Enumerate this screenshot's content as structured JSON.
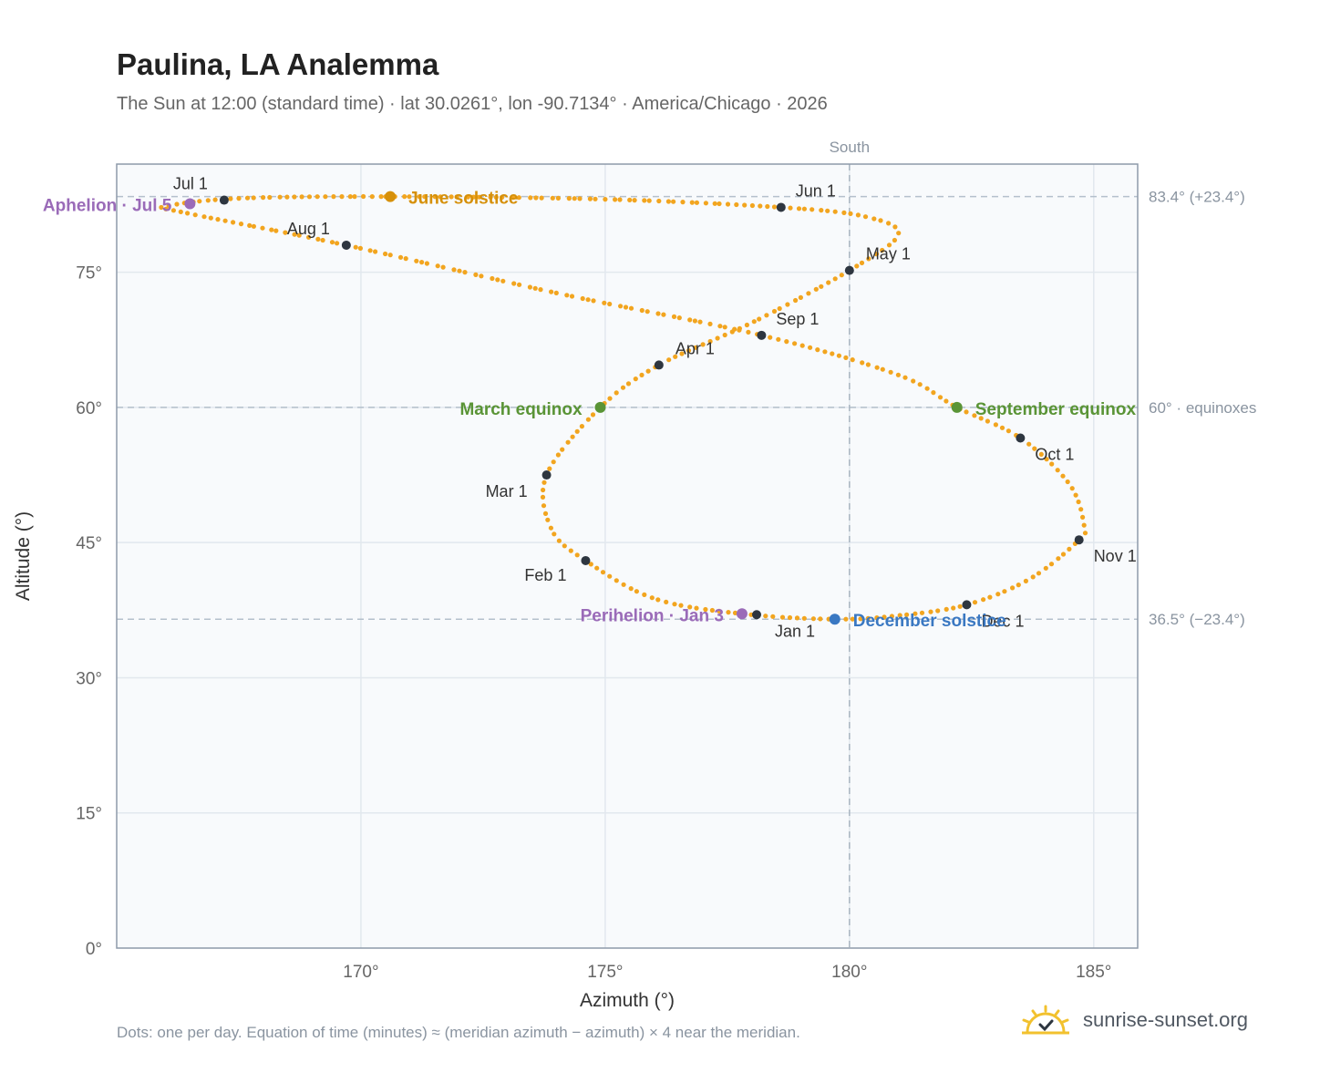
{
  "title": "Paulina, LA Analemma",
  "subtitle": "The Sun at 12:00 (standard time) · lat 30.0261°, lon -90.7134° · America/Chicago · 2026",
  "footer_note": "Dots: one per day. Equation of time (minutes) ≈ (meridian azimuth − azimuth) × 4 near the meridian.",
  "brand": {
    "name": "sunrise-sunset.org",
    "icon": "sun-logo-icon"
  },
  "colors": {
    "path": "#f2a51f",
    "month_dot": "#2e3640",
    "solstice_june": "#d6900a",
    "equinox": "#5a9436",
    "solstice_december": "#3a78c2",
    "perihelion_aphelion": "#9a6bb8",
    "plot_bg": "#f8fafc",
    "grid": "#e2e8ee",
    "frame": "#8e9aaa"
  },
  "chart_data": {
    "type": "scatter",
    "xlabel": "Azimuth (°)",
    "ylabel": "Altitude (°)",
    "xlim": [
      165.0,
      185.9
    ],
    "ylim": [
      0,
      87
    ],
    "xticks": [
      170,
      175,
      180,
      185
    ],
    "xtick_labels": [
      "170°",
      "175°",
      "180°",
      "185°"
    ],
    "yticks": [
      0,
      15,
      30,
      45,
      60,
      75
    ],
    "ytick_labels": [
      "0°",
      "15°",
      "30°",
      "45°",
      "60°",
      "75°"
    ],
    "grid": true,
    "meridian": {
      "x": 180,
      "label": "South"
    },
    "reference_lines": [
      {
        "y": 83.4,
        "label": "83.4° (+23.4°)"
      },
      {
        "y": 60.0,
        "label": "60° · equinoxes"
      },
      {
        "y": 36.5,
        "label": "36.5° (−23.4°)"
      }
    ],
    "month_markers": [
      {
        "label": "Jan 1",
        "x": 178.1,
        "y": 37.0
      },
      {
        "label": "Feb 1",
        "x": 174.6,
        "y": 43.0
      },
      {
        "label": "Mar 1",
        "x": 173.8,
        "y": 52.5
      },
      {
        "label": "Apr 1",
        "x": 176.1,
        "y": 64.7
      },
      {
        "label": "May 1",
        "x": 180.0,
        "y": 75.2
      },
      {
        "label": "Jun 1",
        "x": 178.6,
        "y": 82.2
      },
      {
        "label": "Jul 1",
        "x": 167.2,
        "y": 83.0
      },
      {
        "label": "Aug 1",
        "x": 169.7,
        "y": 78.0
      },
      {
        "label": "Sep 1",
        "x": 178.2,
        "y": 68.0
      },
      {
        "label": "Oct 1",
        "x": 183.5,
        "y": 56.6
      },
      {
        "label": "Nov 1",
        "x": 184.7,
        "y": 45.3
      },
      {
        "label": "Dec 1",
        "x": 182.4,
        "y": 38.1
      }
    ],
    "events": [
      {
        "label": "June solstice",
        "x": 170.6,
        "y": 83.4,
        "kind": "solstice_june"
      },
      {
        "label": "March equinox",
        "x": 174.9,
        "y": 60.0,
        "kind": "equinox"
      },
      {
        "label": "September equinox",
        "x": 182.2,
        "y": 60.0,
        "kind": "equinox"
      },
      {
        "label": "December solstice",
        "x": 179.7,
        "y": 36.5,
        "kind": "solstice_december"
      },
      {
        "label": "Perihelion · Jan 3",
        "x": 177.8,
        "y": 37.1,
        "kind": "perihelion_aphelion"
      },
      {
        "label": "Aphelion · Jul 5",
        "x": 166.5,
        "y": 82.6,
        "kind": "perihelion_aphelion"
      }
    ],
    "path_keypoints": [
      [
        179.7,
        36.5
      ],
      [
        177.8,
        37.1
      ],
      [
        176.0,
        38.8
      ],
      [
        174.6,
        43.0
      ],
      [
        173.9,
        46.5
      ],
      [
        173.8,
        52.5
      ],
      [
        174.9,
        60.0
      ],
      [
        176.1,
        64.7
      ],
      [
        178.0,
        69.4
      ],
      [
        180.0,
        75.2
      ],
      [
        181.0,
        79.2
      ],
      [
        180.3,
        81.2
      ],
      [
        178.6,
        82.2
      ],
      [
        175.0,
        83.1
      ],
      [
        170.6,
        83.4
      ],
      [
        167.5,
        83.2
      ],
      [
        166.0,
        82.3
      ],
      [
        166.4,
        81.6
      ],
      [
        169.7,
        78.0
      ],
      [
        174.0,
        72.7
      ],
      [
        178.2,
        68.0
      ],
      [
        181.0,
        63.6
      ],
      [
        182.2,
        60.0
      ],
      [
        183.5,
        56.6
      ],
      [
        184.5,
        51.5
      ],
      [
        184.8,
        47.0
      ],
      [
        184.7,
        45.3
      ],
      [
        183.7,
        41.0
      ],
      [
        182.4,
        38.1
      ],
      [
        181.0,
        36.9
      ],
      [
        179.7,
        36.5
      ]
    ]
  }
}
